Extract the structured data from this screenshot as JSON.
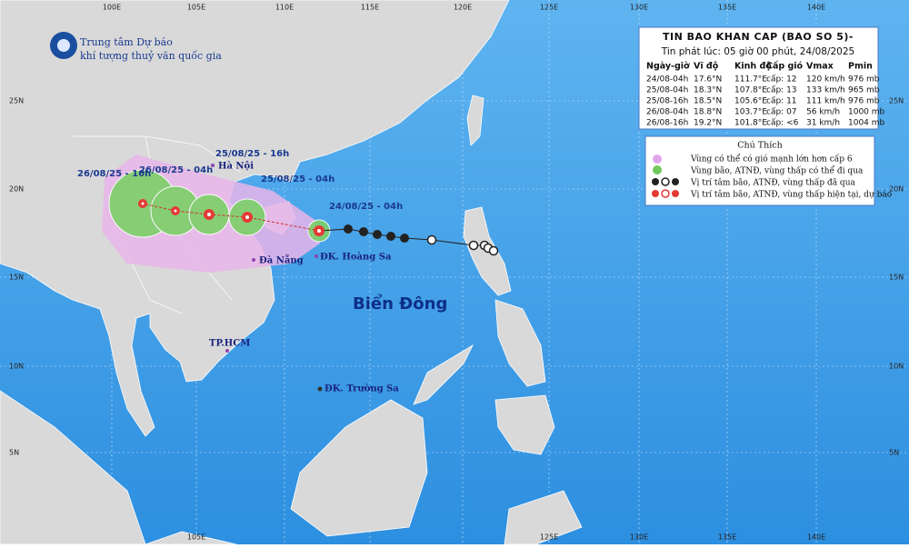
{
  "header": {
    "agency": [
      "Trung tâm Dự báo",
      "khí tượng thuỷ văn quốc gia"
    ]
  },
  "bulletin": {
    "title": "TIN BAO KHAN CAP (BAO SO 5)-",
    "issued": "Tin phát lúc: 05 giờ 00 phút, 24/08/2025",
    "columns": [
      "Ngày-giờ",
      "Vĩ độ",
      "Kinh độ",
      "Cấp gió",
      "Vmax",
      "Pmin"
    ],
    "rows": [
      [
        "24/08-04h",
        "17.6°N",
        "111.7°E",
        "cấp: 12",
        "120 km/h",
        "976 mb"
      ],
      [
        "25/08-04h",
        "18.3°N",
        "107.8°E",
        "cấp: 13",
        "133 km/h",
        "965 mb"
      ],
      [
        "25/08-16h",
        "18.5°N",
        "105.6°E",
        "cấp: 11",
        "111 km/h",
        "976 mb"
      ],
      [
        "26/08-04h",
        "18.8°N",
        "103.7°E",
        "cấp: 07",
        "56 km/h",
        "1000 mb"
      ],
      [
        "26/08-16h",
        "19.2°N",
        "101.8°E",
        "cấp: <6",
        "31 km/h",
        "1004 mb"
      ]
    ]
  },
  "legend": {
    "title": "Chú Thích",
    "items": [
      "Vùng có thể có gió mạnh lớn hơn cấp 6",
      "Vùng bão, ATNĐ, vùng thấp có thể đi qua",
      "Vị trí tâm bão, ATNĐ, vùng thấp đã qua",
      "Vị trí tâm bão, ATNĐ, vùng thấp hiện tại, dự báo"
    ]
  },
  "map": {
    "sea_label": "Biển Đông",
    "places": [
      "Hà Nội",
      "Đà Nẵng",
      "ĐK. Hoàng Sa",
      "TP.HCM",
      "ĐK. Trường Sa"
    ],
    "track_labels": [
      "25/08/25 - 16h",
      "26/08/25 - 16h",
      "26/08/25 - 04h",
      "25/08/25 - 04h",
      "24/08/25 - 04h"
    ],
    "lon_labels_top": [
      "100E",
      "105E",
      "110E",
      "115E",
      "120E",
      "125E",
      "130E",
      "135E",
      "140E"
    ],
    "lon_labels_bottom": [
      "105E",
      "125E",
      "130E",
      "135E",
      "140E"
    ],
    "lat_labels_left": [
      "25N",
      "20N",
      "15N",
      "10N",
      "5N"
    ],
    "lat_labels_right": [
      "25N",
      "20N",
      "15N",
      "10N",
      "5N"
    ]
  }
}
